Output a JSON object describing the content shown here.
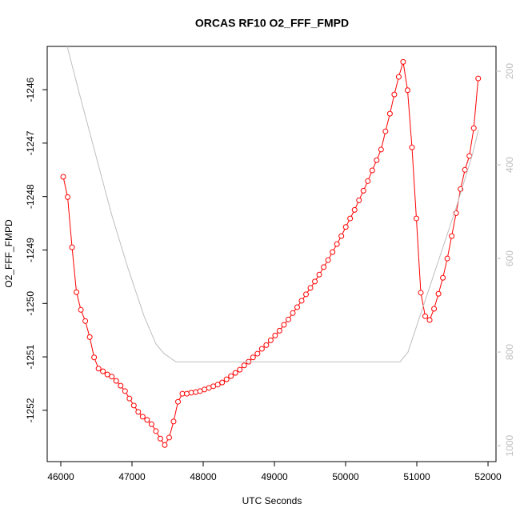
{
  "chart_data": {
    "type": "line",
    "title": "ORCAS RF10 O2_FFF_FMPD",
    "x_label": "UTC Seconds",
    "y_label": "O2_FFF_FMPD",
    "xlim": [
      45809,
      52112
    ],
    "xticks": [
      46000,
      47000,
      48000,
      49000,
      50000,
      51000,
      52000
    ],
    "ylim": [
      -1252.96,
      -1245.19
    ],
    "yticks": [
      -1246,
      -1247,
      -1248,
      -1249,
      -1250,
      -1251,
      -1252
    ],
    "y2lim": [
      1034,
      147
    ],
    "y2ticks": [
      200,
      400,
      600,
      800,
      1000
    ],
    "series": [
      {
        "color": "#ff0000",
        "markers": true,
        "x": [
          46034,
          46096,
          46158,
          46220,
          46282,
          46344,
          46406,
          46468,
          46530,
          46592,
          46654,
          46716,
          46778,
          46840,
          46902,
          46964,
          47026,
          47088,
          47150,
          47212,
          47274,
          47336,
          47398,
          47460,
          47522,
          47584,
          47646,
          47708,
          47770,
          47832,
          47894,
          47956,
          48018,
          48080,
          48142,
          48204,
          48266,
          48328,
          48390,
          48452,
          48514,
          48576,
          48638,
          48700,
          48762,
          48824,
          48886,
          48948,
          49010,
          49072,
          49134,
          49196,
          49258,
          49320,
          49382,
          49444,
          49506,
          49568,
          49630,
          49692,
          49754,
          49816,
          49878,
          49940,
          50002,
          50064,
          50126,
          50188,
          50250,
          50312,
          50374,
          50436,
          50498,
          50560,
          50622,
          50684,
          50746,
          50808,
          50870,
          50932,
          50994,
          51056,
          51118,
          51180,
          51242,
          51304,
          51366,
          51428,
          51490,
          51552,
          51614,
          51676,
          51738,
          51800,
          51862
        ],
        "values": [
          -1247.63,
          -1248.01,
          -1248.95,
          -1249.79,
          -1250.12,
          -1250.33,
          -1250.63,
          -1251.01,
          -1251.22,
          -1251.27,
          -1251.33,
          -1251.37,
          -1251.45,
          -1251.54,
          -1251.64,
          -1251.78,
          -1251.91,
          -1252.03,
          -1252.12,
          -1252.18,
          -1252.26,
          -1252.39,
          -1252.53,
          -1252.65,
          -1252.51,
          -1252.21,
          -1251.84,
          -1251.69,
          -1251.69,
          -1251.67,
          -1251.66,
          -1251.64,
          -1251.61,
          -1251.58,
          -1251.55,
          -1251.52,
          -1251.48,
          -1251.42,
          -1251.36,
          -1251.3,
          -1251.24,
          -1251.16,
          -1251.09,
          -1251.01,
          -1250.94,
          -1250.85,
          -1250.78,
          -1250.69,
          -1250.6,
          -1250.51,
          -1250.4,
          -1250.3,
          -1250.18,
          -1250.07,
          -1249.95,
          -1249.83,
          -1249.71,
          -1249.59,
          -1249.46,
          -1249.32,
          -1249.19,
          -1249.04,
          -1248.89,
          -1248.74,
          -1248.57,
          -1248.41,
          -1248.25,
          -1248.07,
          -1247.89,
          -1247.71,
          -1247.51,
          -1247.32,
          -1247.12,
          -1246.78,
          -1246.45,
          -1246.09,
          -1245.76,
          -1245.48,
          -1246.01,
          -1247.08,
          -1248.41,
          -1249.8,
          -1250.24,
          -1250.31,
          -1250.1,
          -1249.82,
          -1249.52,
          -1249.16,
          -1248.74,
          -1248.31,
          -1247.86,
          -1247.5,
          -1247.24,
          -1246.72,
          -1245.79
        ]
      },
      {
        "color": "#bebebe",
        "axis": "y2",
        "markers": false,
        "x": [
          46090,
          46270,
          46494,
          46719,
          46944,
          47169,
          47337,
          47449,
          47618,
          50764,
          50876,
          51101,
          51326,
          51551,
          51775,
          51865
        ],
        "values": [
          147,
          253,
          381,
          509,
          621,
          723,
          783,
          803,
          821,
          821,
          800,
          697,
          595,
          492,
          381,
          326
        ]
      }
    ]
  }
}
